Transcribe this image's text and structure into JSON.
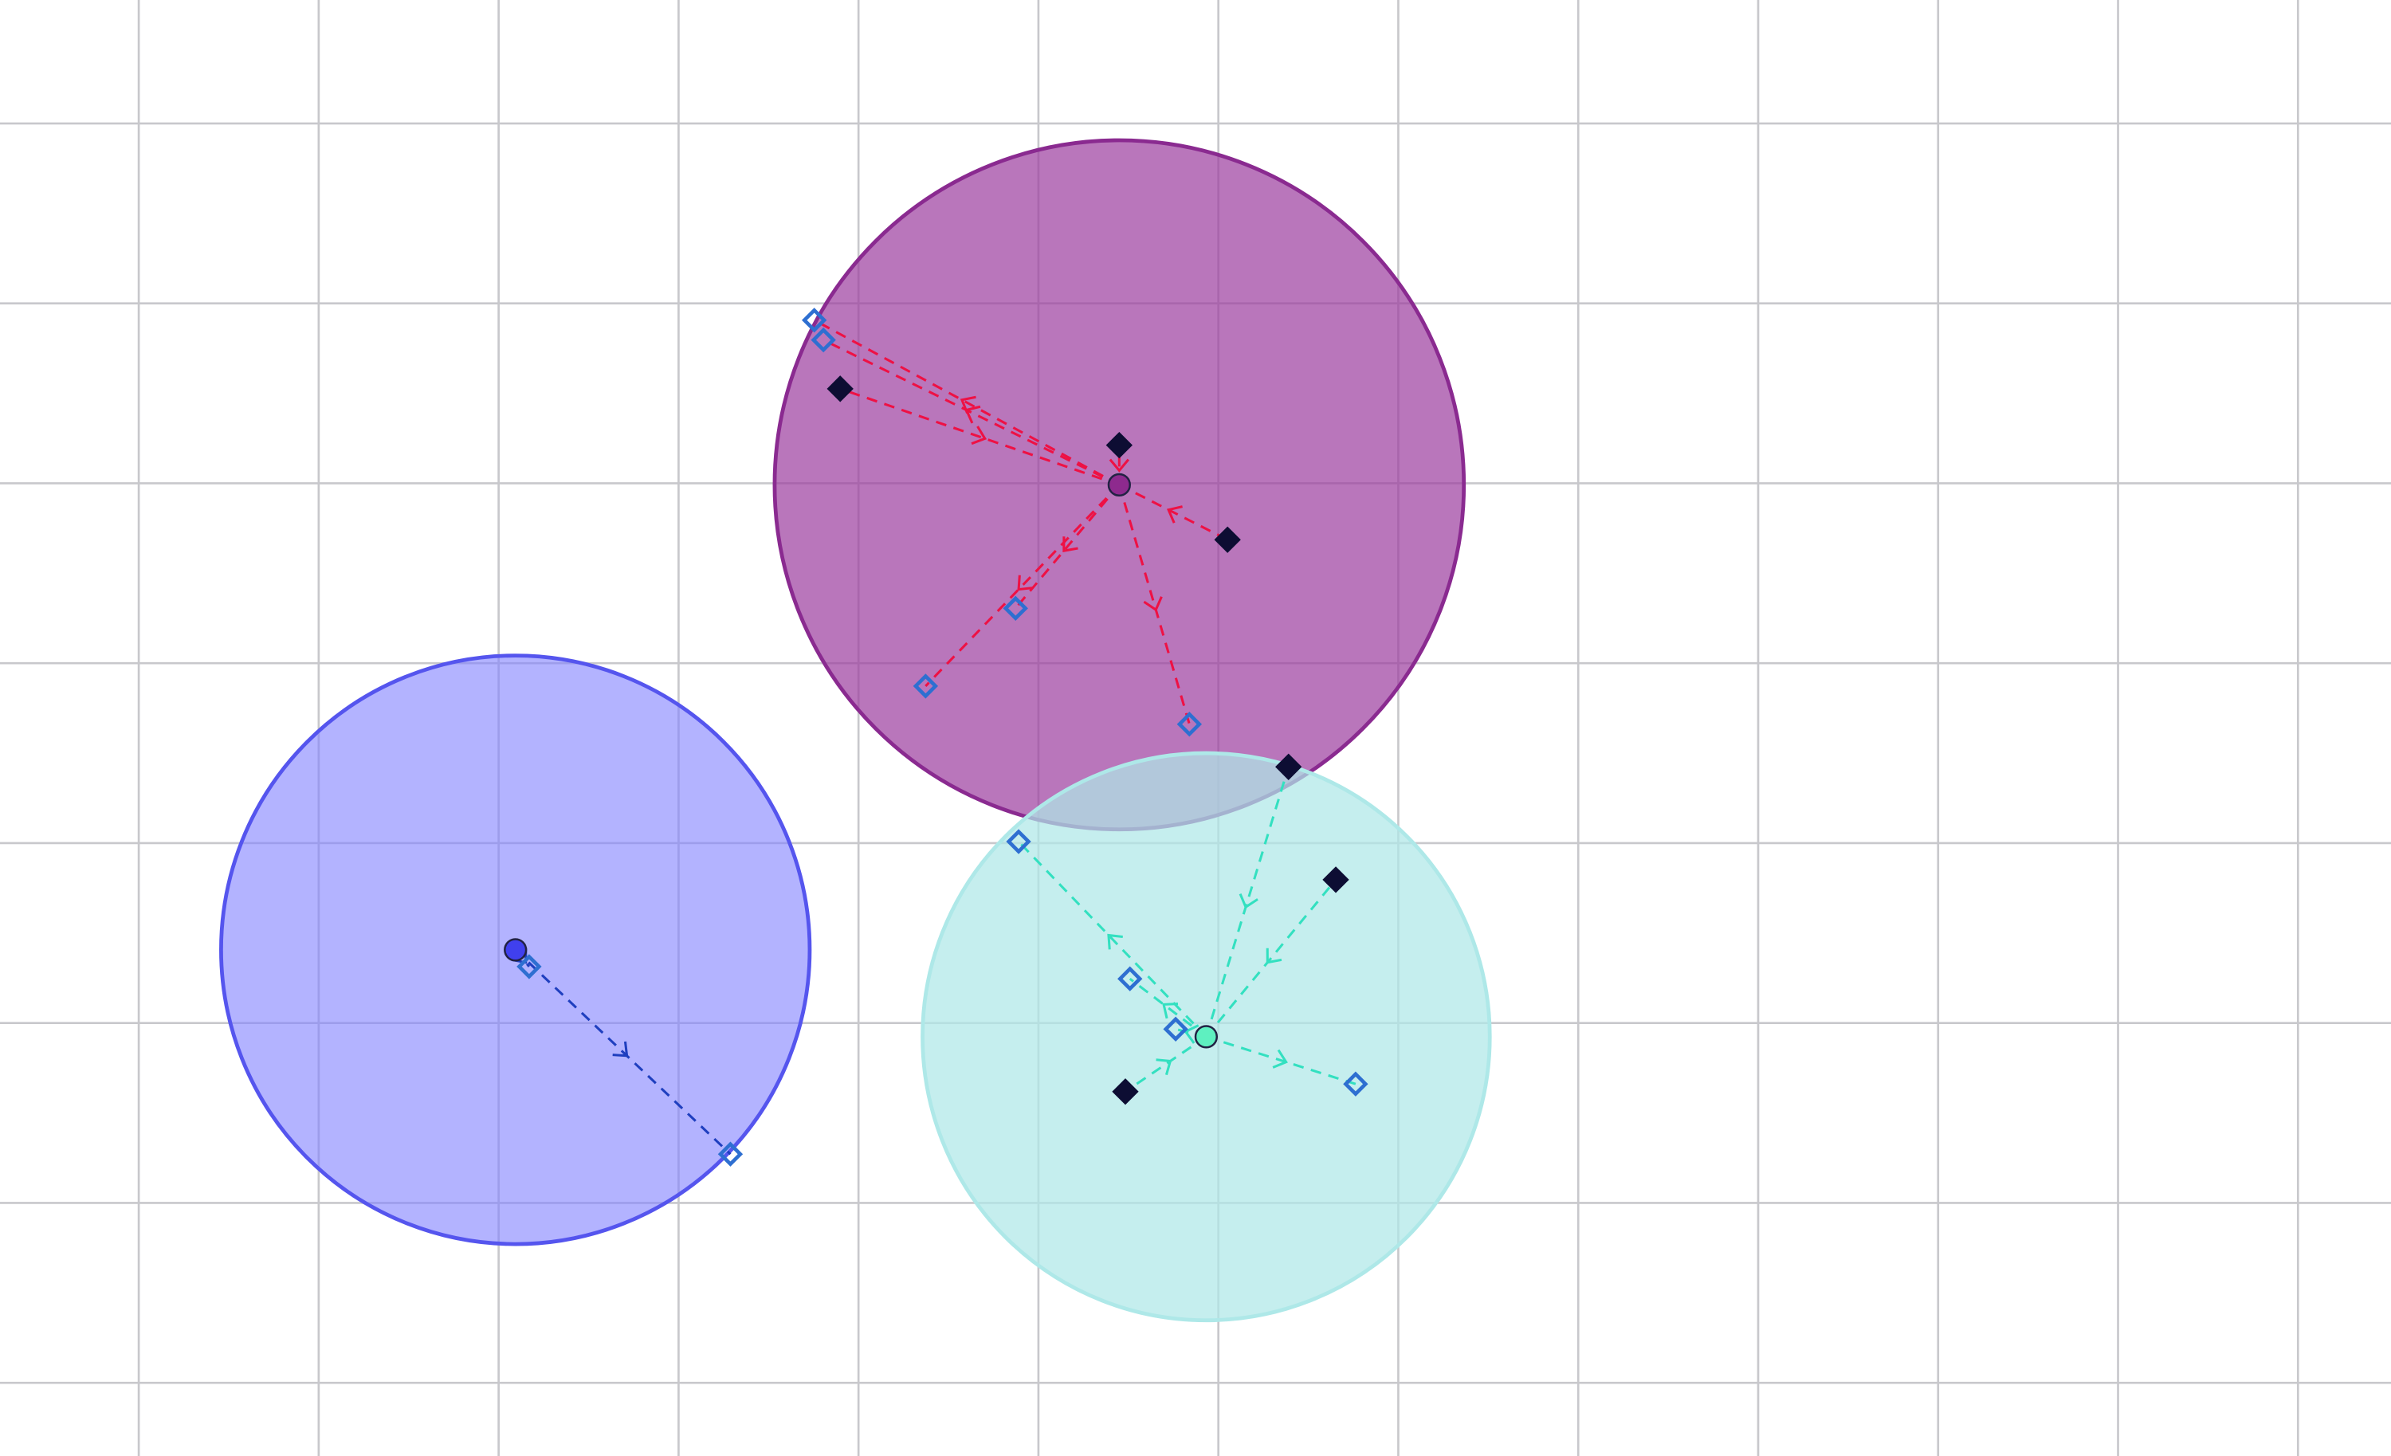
{
  "colors": {
    "background": "#ffffff",
    "grid": "#c8c8cc",
    "filled_marker": "#0d0d33",
    "hollow_marker": "#2e6fd1"
  },
  "grid": {
    "visible": true
  },
  "clusters": [
    {
      "name": "blue-cluster",
      "fill": "#8080ff",
      "fill_opacity": 0.6,
      "stroke": "#5555ee",
      "link_color": "#1f3fbf",
      "center_color": "#4040ee",
      "center": [
        338,
        623
      ],
      "radius": 193,
      "members": [
        {
          "p": [
            347,
            634
          ],
          "kind": "hollow",
          "dir": "out"
        },
        {
          "p": [
            479,
            757
          ],
          "kind": "hollow",
          "dir": "out"
        }
      ]
    },
    {
      "name": "purple-cluster",
      "fill": "#9b3c9e",
      "fill_opacity": 0.7,
      "stroke": "#8a2a90",
      "link_color": "#ee1144",
      "center_color": "#8e2a8e",
      "center": [
        734,
        318
      ],
      "radius": 226,
      "members": [
        {
          "p": [
            534,
            210
          ],
          "kind": "hollow",
          "dir": "out"
        },
        {
          "p": [
            540,
            223
          ],
          "kind": "hollow",
          "dir": "out"
        },
        {
          "p": [
            551,
            255
          ],
          "kind": "filled",
          "dir": "in"
        },
        {
          "p": [
            734,
            292
          ],
          "kind": "filled",
          "dir": "in"
        },
        {
          "p": [
            805,
            354
          ],
          "kind": "filled",
          "dir": "in"
        },
        {
          "p": [
            666,
            399
          ],
          "kind": "hollow",
          "dir": "out"
        },
        {
          "p": [
            607,
            450
          ],
          "kind": "hollow",
          "dir": "out"
        },
        {
          "p": [
            780,
            475
          ],
          "kind": "hollow",
          "dir": "out"
        }
      ]
    },
    {
      "name": "cyan-cluster",
      "fill": "#aee8e8",
      "fill_opacity": 0.72,
      "stroke": "#aee8e8",
      "link_color": "#33e0c0",
      "center_color": "#5ef0c0",
      "center": [
        791,
        680
      ],
      "radius": 186,
      "members": [
        {
          "p": [
            845,
            503
          ],
          "kind": "filled",
          "dir": "in"
        },
        {
          "p": [
            876,
            577
          ],
          "kind": "filled",
          "dir": "in"
        },
        {
          "p": [
            668,
            552
          ],
          "kind": "hollow",
          "dir": "out"
        },
        {
          "p": [
            741,
            642
          ],
          "kind": "hollow",
          "dir": "out"
        },
        {
          "p": [
            771,
            675
          ],
          "kind": "hollow",
          "dir": "out"
        },
        {
          "p": [
            738,
            716
          ],
          "kind": "filled",
          "dir": "in"
        },
        {
          "p": [
            889,
            711
          ],
          "kind": "hollow",
          "dir": "out"
        }
      ]
    }
  ]
}
